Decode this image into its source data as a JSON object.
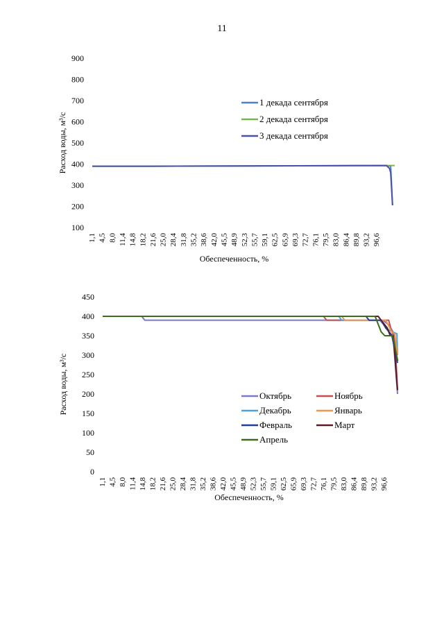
{
  "page": {
    "number": "11"
  },
  "chart_data": [
    {
      "type": "line",
      "title": "",
      "xlabel": "Обеспеченность, %",
      "ylabel": "Расход воды, м³/с",
      "ylim": [
        100,
        900
      ],
      "yticks": [
        100,
        200,
        300,
        400,
        500,
        600,
        700,
        800,
        900
      ],
      "grid": false,
      "legend_position": "top-right",
      "categories": [
        "1,1",
        "4,5",
        "8,0",
        "11,4",
        "14,8",
        "18,2",
        "21,6",
        "25,0",
        "28,4",
        "31,8",
        "35,2",
        "38,6",
        "42,0",
        "45,5",
        "48,9",
        "52,3",
        "55,7",
        "59,1",
        "62,5",
        "65,9",
        "69,3",
        "72,7",
        "76,1",
        "79,5",
        "83,0",
        "86,4",
        "89,8",
        "93,2",
        "96,6"
      ],
      "series": [
        {
          "name": "1 декада сентября",
          "color": "#4a7fd0",
          "points": [
            [
              1.1,
              390
            ],
            [
              20,
              390
            ],
            [
              50,
              391
            ],
            [
              80,
              392
            ],
            [
              96.6,
              393
            ],
            [
              98.0,
              390
            ],
            [
              98.3,
              300
            ],
            [
              98.6,
              205
            ]
          ]
        },
        {
          "name": "2 декада сентября",
          "color": "#7db34a",
          "points": [
            [
              1.1,
              390
            ],
            [
              20,
              390
            ],
            [
              50,
              391
            ],
            [
              80,
              392
            ],
            [
              96.6,
              393
            ],
            [
              99.3,
              393
            ]
          ]
        },
        {
          "name": "3 декада сентября",
          "color": "#4a4fb0",
          "points": [
            [
              1.1,
              390
            ],
            [
              20,
              390
            ],
            [
              50,
              391
            ],
            [
              80,
              392
            ],
            [
              96.6,
              393
            ],
            [
              97.6,
              380
            ],
            [
              98.0,
              360
            ],
            [
              98.6,
              205
            ]
          ]
        }
      ]
    },
    {
      "type": "line",
      "title": "",
      "xlabel": "Обеспеченность, %",
      "ylabel": "Расход воды, м³/с",
      "ylim": [
        0,
        450
      ],
      "yticks": [
        0,
        50,
        100,
        150,
        200,
        250,
        300,
        350,
        400,
        450
      ],
      "grid": false,
      "legend_position": "bottom-right",
      "categories": [
        "1,1",
        "4,5",
        "8,0",
        "11,4",
        "14,8",
        "18,2",
        "21,6",
        "25,0",
        "28,4",
        "31,8",
        "35,2",
        "38,6",
        "42,0",
        "45,5",
        "48,9",
        "52,3",
        "55,7",
        "59,1",
        "62,5",
        "65,9",
        "69,3",
        "72,7",
        "76,1",
        "79,5",
        "83,0",
        "86,4",
        "89,8",
        "93,2",
        "96,6"
      ],
      "series": [
        {
          "name": "Октябрь",
          "color": "#7b78c8",
          "points": [
            [
              1.1,
              400
            ],
            [
              14.0,
              400
            ],
            [
              15.0,
              390
            ],
            [
              93.5,
              390
            ],
            [
              95.5,
              378
            ],
            [
              96.8,
              362
            ],
            [
              98.4,
              200
            ]
          ]
        },
        {
          "name": "Ноябрь",
          "color": "#c0504d",
          "points": [
            [
              1.1,
              400
            ],
            [
              74.0,
              400
            ],
            [
              75.0,
              390
            ],
            [
              95.5,
              390
            ],
            [
              96.5,
              360
            ],
            [
              97.5,
              350
            ],
            [
              98.4,
              210
            ]
          ]
        },
        {
          "name": "Декабрь",
          "color": "#4aa0e0",
          "points": [
            [
              1.1,
              400
            ],
            [
              79.0,
              400
            ],
            [
              80.0,
              390
            ],
            [
              92.5,
              390
            ],
            [
              95.5,
              365
            ],
            [
              96.8,
              360
            ],
            [
              98.2,
              355
            ],
            [
              98.4,
              300
            ]
          ]
        },
        {
          "name": "Январь",
          "color": "#f2954a",
          "points": [
            [
              1.1,
              400
            ],
            [
              80.0,
              400
            ],
            [
              81.0,
              390
            ],
            [
              94.5,
              390
            ],
            [
              96.5,
              360
            ],
            [
              97.5,
              355
            ],
            [
              98.4,
              300
            ]
          ]
        },
        {
          "name": "Февраль",
          "color": "#1f3d99",
          "points": [
            [
              1.1,
              400
            ],
            [
              88.0,
              400
            ],
            [
              89.0,
              390
            ],
            [
              93.0,
              390
            ],
            [
              94.5,
              370
            ],
            [
              96.5,
              352
            ],
            [
              98.4,
              280
            ]
          ]
        },
        {
          "name": "Март",
          "color": "#5a1a24",
          "points": [
            [
              1.1,
              400
            ],
            [
              92.0,
              400
            ],
            [
              93.0,
              390
            ],
            [
              95.0,
              370
            ],
            [
              96.0,
              350
            ],
            [
              97.0,
              350
            ],
            [
              98.4,
              210
            ]
          ]
        },
        {
          "name": "Апрель",
          "color": "#3d6b1e",
          "points": [
            [
              1.1,
              400
            ],
            [
              91.0,
              400
            ],
            [
              91.5,
              390
            ],
            [
              93.0,
              360
            ],
            [
              94.2,
              350
            ],
            [
              96.8,
              350
            ],
            [
              98.5,
              285
            ]
          ]
        }
      ]
    }
  ]
}
